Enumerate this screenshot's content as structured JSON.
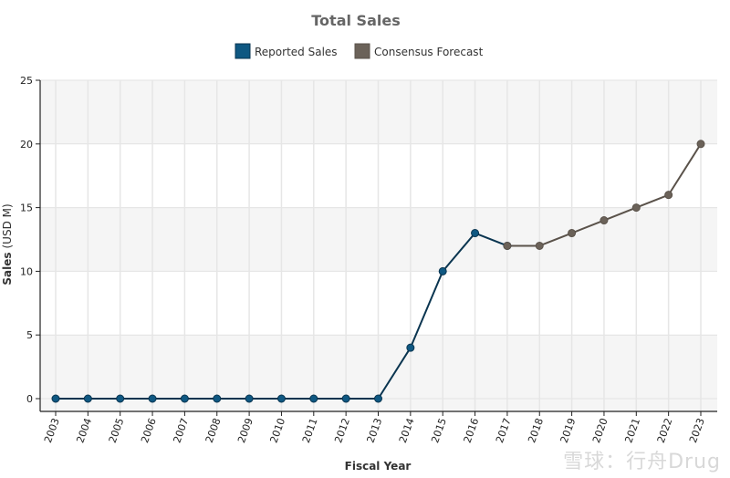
{
  "chart_data": {
    "type": "line",
    "title": "Total Sales",
    "xlabel": "Fiscal Year",
    "ylabel": "Sales",
    "ylabel_unit": "(USD M)",
    "ylim": [
      0,
      25
    ],
    "yticks": [
      0,
      5,
      10,
      15,
      20,
      25
    ],
    "grid": true,
    "legend_position": "top-center",
    "x": [
      "2003",
      "2004",
      "2005",
      "2006",
      "2007",
      "2008",
      "2009",
      "2010",
      "2011",
      "2012",
      "2013",
      "2014",
      "2015",
      "2016",
      "2017",
      "2018",
      "2019",
      "2020",
      "2021",
      "2022",
      "2023"
    ],
    "series": [
      {
        "name": "Reported Sales",
        "color": "#0f5882",
        "line_color": "#0a3550",
        "x": [
          "2003",
          "2004",
          "2005",
          "2006",
          "2007",
          "2008",
          "2009",
          "2010",
          "2011",
          "2012",
          "2013",
          "2014",
          "2015",
          "2016",
          "2017"
        ],
        "values": [
          0,
          0,
          0,
          0,
          0,
          0,
          0,
          0,
          0,
          0,
          0,
          4,
          10,
          13,
          12
        ]
      },
      {
        "name": "Consensus Forecast",
        "color": "#6b6259",
        "line_color": "#5a524a",
        "x": [
          "2017",
          "2018",
          "2019",
          "2020",
          "2021",
          "2022",
          "2023"
        ],
        "values": [
          12,
          12,
          13,
          14,
          15,
          16,
          20
        ]
      }
    ]
  },
  "watermark": "雪球：行舟Drug"
}
